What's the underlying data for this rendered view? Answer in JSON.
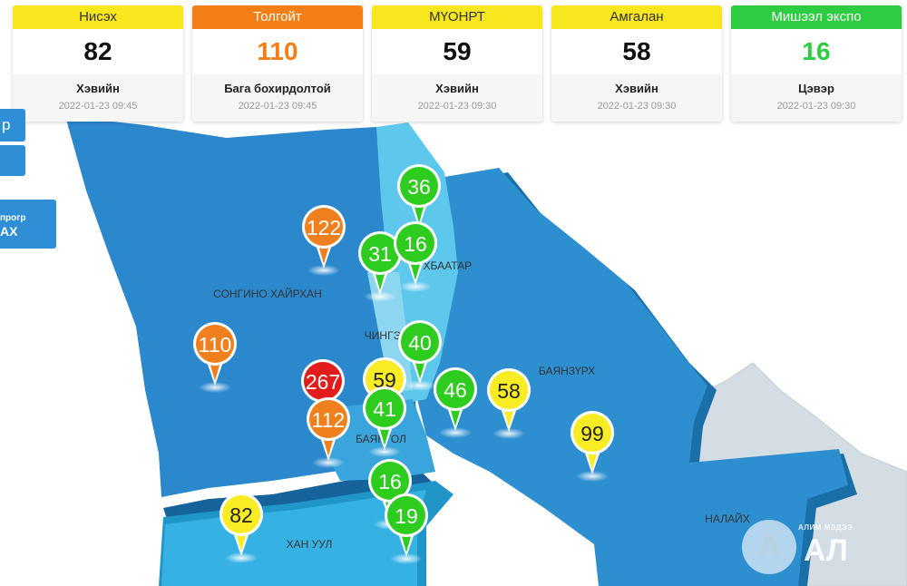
{
  "cards": [
    {
      "name": "Нисэх",
      "value": "82",
      "status": "Хэвийн",
      "time": "2022-01-23 09:45",
      "head_color": "#f8e71c",
      "head_text": "#333333",
      "value_color": "#111111"
    },
    {
      "name": "Толгойт",
      "value": "110",
      "status": "Бага бохирдолтой",
      "time": "2022-01-23 09:45",
      "head_color": "#f57f17",
      "head_text": "#ffffff",
      "value_color": "#f57f17"
    },
    {
      "name": "МҮОНРТ",
      "value": "59",
      "status": "Хэвийн",
      "time": "2022-01-23 09:30",
      "head_color": "#f8e71c",
      "head_text": "#333333",
      "value_color": "#111111"
    },
    {
      "name": "Амгалан",
      "value": "58",
      "status": "Хэвийн",
      "time": "2022-01-23 09:30",
      "head_color": "#f8e71c",
      "head_text": "#333333",
      "value_color": "#111111"
    },
    {
      "name": "Мишээл экспо",
      "value": "16",
      "status": "Цэвэр",
      "time": "2022-01-23 09:30",
      "head_color": "#2ecc40",
      "head_text": "#ffffff",
      "value_color": "#2ecc40"
    }
  ],
  "side_buttons": {
    "btn1": "р",
    "btn3_line1": "прогр",
    "btn3_line2": "АХ"
  },
  "districts": {
    "songino": "СОНГИНО ХАЙРХАН",
    "sukhbaatar": "ҮХБААТАР",
    "chingeltei": "ЧИНГЭ",
    "bayanzurkh": "БАЯНЗҮРХ",
    "bayangol": "БАЯНГОЛ",
    "khanuul": "ХАН УУЛ",
    "nalaikh": "НАЛАЙХ"
  },
  "markers": [
    {
      "value": "36",
      "level": "good"
    },
    {
      "value": "122",
      "level": "moderate"
    },
    {
      "value": "31",
      "level": "good"
    },
    {
      "value": "16",
      "level": "good"
    },
    {
      "value": "110",
      "level": "moderate"
    },
    {
      "value": "40",
      "level": "good"
    },
    {
      "value": "267",
      "level": "unhealthy"
    },
    {
      "value": "59",
      "level": "normal"
    },
    {
      "value": "46",
      "level": "good"
    },
    {
      "value": "58",
      "level": "normal"
    },
    {
      "value": "112",
      "level": "moderate"
    },
    {
      "value": "41",
      "level": "good"
    },
    {
      "value": "99",
      "level": "normal"
    },
    {
      "value": "16",
      "level": "good"
    },
    {
      "value": "19",
      "level": "good"
    },
    {
      "value": "82",
      "level": "normal"
    }
  ],
  "level_colors": {
    "good": "#2ecc1f",
    "normal": "#f8ec25",
    "moderate": "#f07f1e",
    "unhealthy": "#e21b1b"
  },
  "watermark": {
    "small": "АЛИМ МЭДЭЭ",
    "big": "АЛ"
  }
}
